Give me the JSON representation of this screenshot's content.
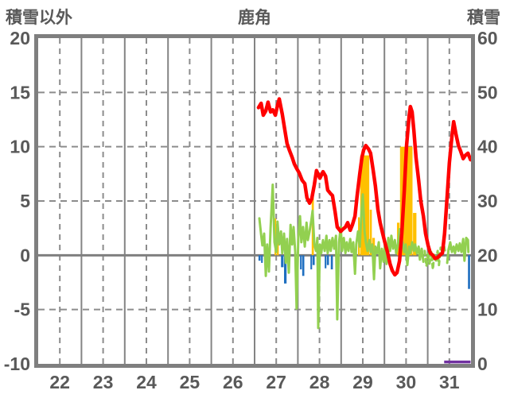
{
  "header": {
    "left_axis_title": "積雪以外",
    "chart_title": "鹿角",
    "right_axis_title": "積雪"
  },
  "chart_data": {
    "type": "line",
    "title": "鹿角",
    "legend": "none",
    "grid": "on",
    "left_axis": {
      "label": "積雪以外",
      "min": -10,
      "max": 20,
      "ticks": [
        20,
        15,
        10,
        5,
        0,
        -5,
        -10
      ]
    },
    "right_axis": {
      "label": "積雪",
      "min": 0,
      "max": 60,
      "ticks": [
        60,
        50,
        40,
        30,
        20,
        10,
        0
      ]
    },
    "x_axis": {
      "min": 22,
      "max": 32,
      "labels": [
        "22",
        "23",
        "24",
        "25",
        "26",
        "27",
        "28",
        "29",
        "30",
        "31"
      ]
    },
    "colors": {
      "red": "#FF0000",
      "green": "#92D050",
      "yellow": "#FFC000",
      "blue": "#1F6FC0",
      "purple": "#7030A0",
      "grid_solid": "#848484",
      "grid_dash": "#8C8C8C",
      "border": "#7F7F7F",
      "zero": "#7F7F7F",
      "text": "#595959"
    },
    "red_line_points": [
      [
        27.09,
        13.6
      ],
      [
        27.15,
        14.0
      ],
      [
        27.2,
        12.9
      ],
      [
        27.26,
        13.3
      ],
      [
        27.31,
        14.1
      ],
      [
        27.37,
        13.2
      ],
      [
        27.42,
        13.4
      ],
      [
        27.48,
        12.9
      ],
      [
        27.53,
        13.8
      ],
      [
        27.57,
        14.4
      ],
      [
        27.64,
        13.0
      ],
      [
        27.7,
        11.5
      ],
      [
        27.75,
        10.3
      ],
      [
        27.81,
        9.6
      ],
      [
        27.87,
        9.0
      ],
      [
        27.92,
        8.4
      ],
      [
        27.97,
        8.0
      ],
      [
        28.03,
        7.6
      ],
      [
        28.1,
        6.9
      ],
      [
        28.16,
        6.6
      ],
      [
        28.21,
        5.3
      ],
      [
        28.27,
        4.8
      ],
      [
        28.32,
        5.2
      ],
      [
        28.38,
        6.5
      ],
      [
        28.43,
        7.8
      ],
      [
        28.51,
        7.1
      ],
      [
        28.58,
        7.7
      ],
      [
        28.64,
        7.3
      ],
      [
        28.69,
        6.0
      ],
      [
        28.75,
        5.7
      ],
      [
        28.8,
        5.5
      ],
      [
        28.86,
        4.0
      ],
      [
        28.91,
        2.6
      ],
      [
        28.99,
        2.2
      ],
      [
        29.04,
        2.4
      ],
      [
        29.1,
        2.6
      ],
      [
        29.15,
        3.0
      ],
      [
        29.21,
        2.3
      ],
      [
        29.26,
        2.8
      ],
      [
        29.32,
        3.6
      ],
      [
        29.37,
        5.5
      ],
      [
        29.43,
        7.5
      ],
      [
        29.48,
        9.0
      ],
      [
        29.52,
        9.7
      ],
      [
        29.57,
        10.1
      ],
      [
        29.63,
        9.8
      ],
      [
        29.68,
        9.4
      ],
      [
        29.74,
        7.8
      ],
      [
        29.79,
        6.4
      ],
      [
        29.85,
        4.2
      ],
      [
        29.9,
        3.0
      ],
      [
        29.96,
        2.0
      ],
      [
        30.01,
        1.2
      ],
      [
        30.07,
        0.3
      ],
      [
        30.13,
        -0.8
      ],
      [
        30.18,
        -1.4
      ],
      [
        30.24,
        -1.8
      ],
      [
        30.29,
        -1.6
      ],
      [
        30.35,
        -0.5
      ],
      [
        30.4,
        2.0
      ],
      [
        30.46,
        6.0
      ],
      [
        30.51,
        10.0
      ],
      [
        30.57,
        12.8
      ],
      [
        30.6,
        13.7
      ],
      [
        30.64,
        13.2
      ],
      [
        30.68,
        11.5
      ],
      [
        30.73,
        9.0
      ],
      [
        30.79,
        6.9
      ],
      [
        30.84,
        5.0
      ],
      [
        30.9,
        3.6
      ],
      [
        30.95,
        2.0
      ],
      [
        31.01,
        0.9
      ],
      [
        31.06,
        0.2
      ],
      [
        31.12,
        0.0
      ],
      [
        31.17,
        -0.3
      ],
      [
        31.23,
        -0.2
      ],
      [
        31.28,
        0.0
      ],
      [
        31.34,
        0.2
      ],
      [
        31.39,
        2.0
      ],
      [
        31.45,
        5.5
      ],
      [
        31.5,
        8.5
      ],
      [
        31.56,
        11.0
      ],
      [
        31.6,
        12.3
      ],
      [
        31.65,
        11.2
      ],
      [
        31.71,
        10.1
      ],
      [
        31.76,
        9.6
      ],
      [
        31.82,
        8.9
      ],
      [
        31.87,
        9.2
      ],
      [
        31.93,
        9.4
      ],
      [
        31.99,
        8.8
      ]
    ],
    "green_segments": [
      {
        "dash": false,
        "points": [
          [
            27.11,
            3.4
          ],
          [
            27.15,
            1.9
          ],
          [
            27.18,
            0.9
          ],
          [
            27.22,
            2.0
          ],
          [
            27.26,
            -1.9
          ],
          [
            27.29,
            1.0
          ],
          [
            27.33,
            -1.5
          ],
          [
            27.37,
            2.5
          ],
          [
            27.42,
            6.5
          ],
          [
            27.46,
            1.2
          ],
          [
            27.5,
            0.3
          ],
          [
            27.53,
            3.1
          ],
          [
            27.57,
            1.0
          ],
          [
            27.61,
            2.2
          ],
          [
            27.64,
            0.2
          ],
          [
            27.68,
            2.0
          ],
          [
            27.72,
            -0.7
          ],
          [
            27.75,
            1.5
          ],
          [
            27.79,
            -1.6
          ],
          [
            27.83,
            2.8
          ],
          [
            27.87,
            1.0
          ],
          [
            27.9,
            2.6
          ],
          [
            27.94,
            0.3
          ],
          [
            27.97,
            -4.9
          ],
          [
            28.01,
            1.5
          ],
          [
            28.05,
            3.6
          ],
          [
            28.08,
            1.2
          ],
          [
            28.12,
            2.6
          ],
          [
            28.16,
            0.8
          ],
          [
            28.2,
            3.0
          ],
          [
            28.23,
            1.4
          ],
          [
            28.27,
            2.2
          ],
          [
            28.31,
            3.2
          ],
          [
            28.34,
            4.1
          ],
          [
            28.38,
            1.0
          ],
          [
            28.42,
            0.4
          ],
          [
            28.45,
            1.6
          ],
          [
            28.47,
            -6.7
          ],
          [
            28.51,
            1.0
          ],
          [
            28.54,
            0.2
          ],
          [
            28.58,
            1.4
          ],
          [
            28.62,
            0.4
          ],
          [
            28.66,
            1.8
          ],
          [
            28.69,
            0.2
          ],
          [
            28.73,
            1.4
          ],
          [
            28.76,
            0.4
          ],
          [
            28.8,
            1.6
          ],
          [
            28.84,
            0.6
          ],
          [
            28.88,
            1.8
          ],
          [
            28.91,
            -5.9
          ],
          [
            28.95,
            1.2
          ],
          [
            28.99,
            2.6
          ],
          [
            29.02,
            0.4
          ],
          [
            29.06,
            1.6
          ],
          [
            29.1,
            0.2
          ],
          [
            29.13,
            1.2
          ],
          [
            29.17,
            0.4
          ],
          [
            29.21,
            1.5
          ],
          [
            29.24,
            0.3
          ],
          [
            29.28,
            1.2
          ],
          [
            29.32,
            -1.7
          ],
          [
            29.35,
            1.0
          ],
          [
            29.39,
            2.2
          ],
          [
            29.43,
            0.8
          ],
          [
            29.46,
            3.3
          ],
          [
            29.5,
            5.6
          ],
          [
            29.54,
            2.2
          ],
          [
            29.57,
            1.2
          ],
          [
            29.61,
            0.4
          ],
          [
            29.65,
            1.4
          ],
          [
            29.68,
            0.3
          ],
          [
            29.72,
            1.0
          ],
          [
            29.76,
            -2.2
          ],
          [
            29.79,
            0.8
          ],
          [
            29.83,
            0.2
          ],
          [
            29.87,
            1.2
          ],
          [
            29.9,
            -1.2
          ],
          [
            29.94,
            0.6
          ],
          [
            29.98,
            -0.6
          ],
          [
            30.01,
            0.8
          ],
          [
            30.05,
            -0.8
          ],
          [
            30.09,
            1.6
          ],
          [
            30.13,
            0.4
          ],
          [
            30.16,
            1.8
          ],
          [
            30.2,
            0.6
          ],
          [
            30.24,
            1.4
          ],
          [
            30.27,
            0.2
          ],
          [
            30.31,
            1.0
          ],
          [
            30.35,
            2.4
          ],
          [
            30.38,
            0.5
          ],
          [
            30.42,
            1.2
          ],
          [
            30.46,
            0.3
          ],
          [
            30.49,
            1.0
          ],
          [
            30.53,
            -0.9
          ],
          [
            30.57,
            0.8
          ],
          [
            30.6,
            0.2
          ],
          [
            30.64,
            1.2
          ],
          [
            30.68,
            0.4
          ],
          [
            30.71,
            1.0
          ],
          [
            30.75,
            0.2
          ],
          [
            30.79,
            0.8
          ],
          [
            30.82,
            -0.4
          ],
          [
            30.86,
            0.6
          ],
          [
            30.9,
            -0.6
          ]
        ]
      },
      {
        "dash": true,
        "points": [
          [
            30.93,
            0.4
          ],
          [
            30.97,
            -1.0
          ],
          [
            31.01,
            0.2
          ],
          [
            31.04,
            -0.8
          ],
          [
            31.08,
            0.3
          ],
          [
            31.12,
            -1.3
          ],
          [
            31.15,
            0.2
          ],
          [
            31.19,
            -0.6
          ],
          [
            31.23,
            0.4
          ],
          [
            31.26,
            -0.9
          ],
          [
            31.3,
            0.7
          ],
          [
            31.34,
            0.3
          ],
          [
            31.37,
            1.0
          ],
          [
            31.41,
            0.2
          ]
        ]
      },
      {
        "dash": false,
        "points": [
          [
            31.45,
            -0.7
          ],
          [
            31.48,
            0.5
          ],
          [
            31.52,
            1.2
          ],
          [
            31.56,
            0.3
          ],
          [
            31.6,
            0.8
          ],
          [
            31.63,
            0.2
          ],
          [
            31.67,
            1.0
          ],
          [
            31.71,
            0.4
          ],
          [
            31.74,
            1.1
          ],
          [
            31.78,
            0.3
          ],
          [
            31.82,
            1.5
          ],
          [
            31.85,
            -0.5
          ],
          [
            31.89,
            1.6
          ],
          [
            31.93,
            1.4
          ],
          [
            31.94,
            0.3
          ]
        ]
      }
    ],
    "yellow_bars": [
      [
        27.46,
        27.51,
        3.4
      ],
      [
        27.51,
        27.57,
        2.9
      ],
      [
        28.32,
        28.38,
        5.9
      ],
      [
        29.39,
        29.44,
        3.5
      ],
      [
        29.44,
        29.66,
        9.2
      ],
      [
        29.66,
        29.72,
        4.2
      ],
      [
        29.72,
        29.79,
        1.6
      ],
      [
        30.29,
        30.36,
        3.0
      ],
      [
        30.36,
        30.66,
        10.0
      ],
      [
        30.66,
        30.75,
        3.9
      ]
    ],
    "blue_bars": [
      [
        27.09,
        27.15,
        -0.5
      ],
      [
        27.15,
        27.2,
        -0.7
      ],
      [
        27.61,
        27.68,
        -1.1
      ],
      [
        27.68,
        27.75,
        -2.6
      ],
      [
        28.05,
        28.1,
        -1.3
      ],
      [
        28.1,
        28.16,
        -1.9
      ],
      [
        28.29,
        28.34,
        -1.3
      ],
      [
        28.34,
        28.4,
        -0.9
      ],
      [
        28.62,
        28.67,
        -1.2
      ],
      [
        28.67,
        28.73,
        -0.9
      ],
      [
        28.76,
        28.82,
        -1.3
      ],
      [
        31.93,
        31.99,
        -3.1
      ]
    ],
    "purple_line_points_right_axis": [
      [
        31.38,
        0.2
      ],
      [
        31.99,
        0.2
      ]
    ]
  }
}
